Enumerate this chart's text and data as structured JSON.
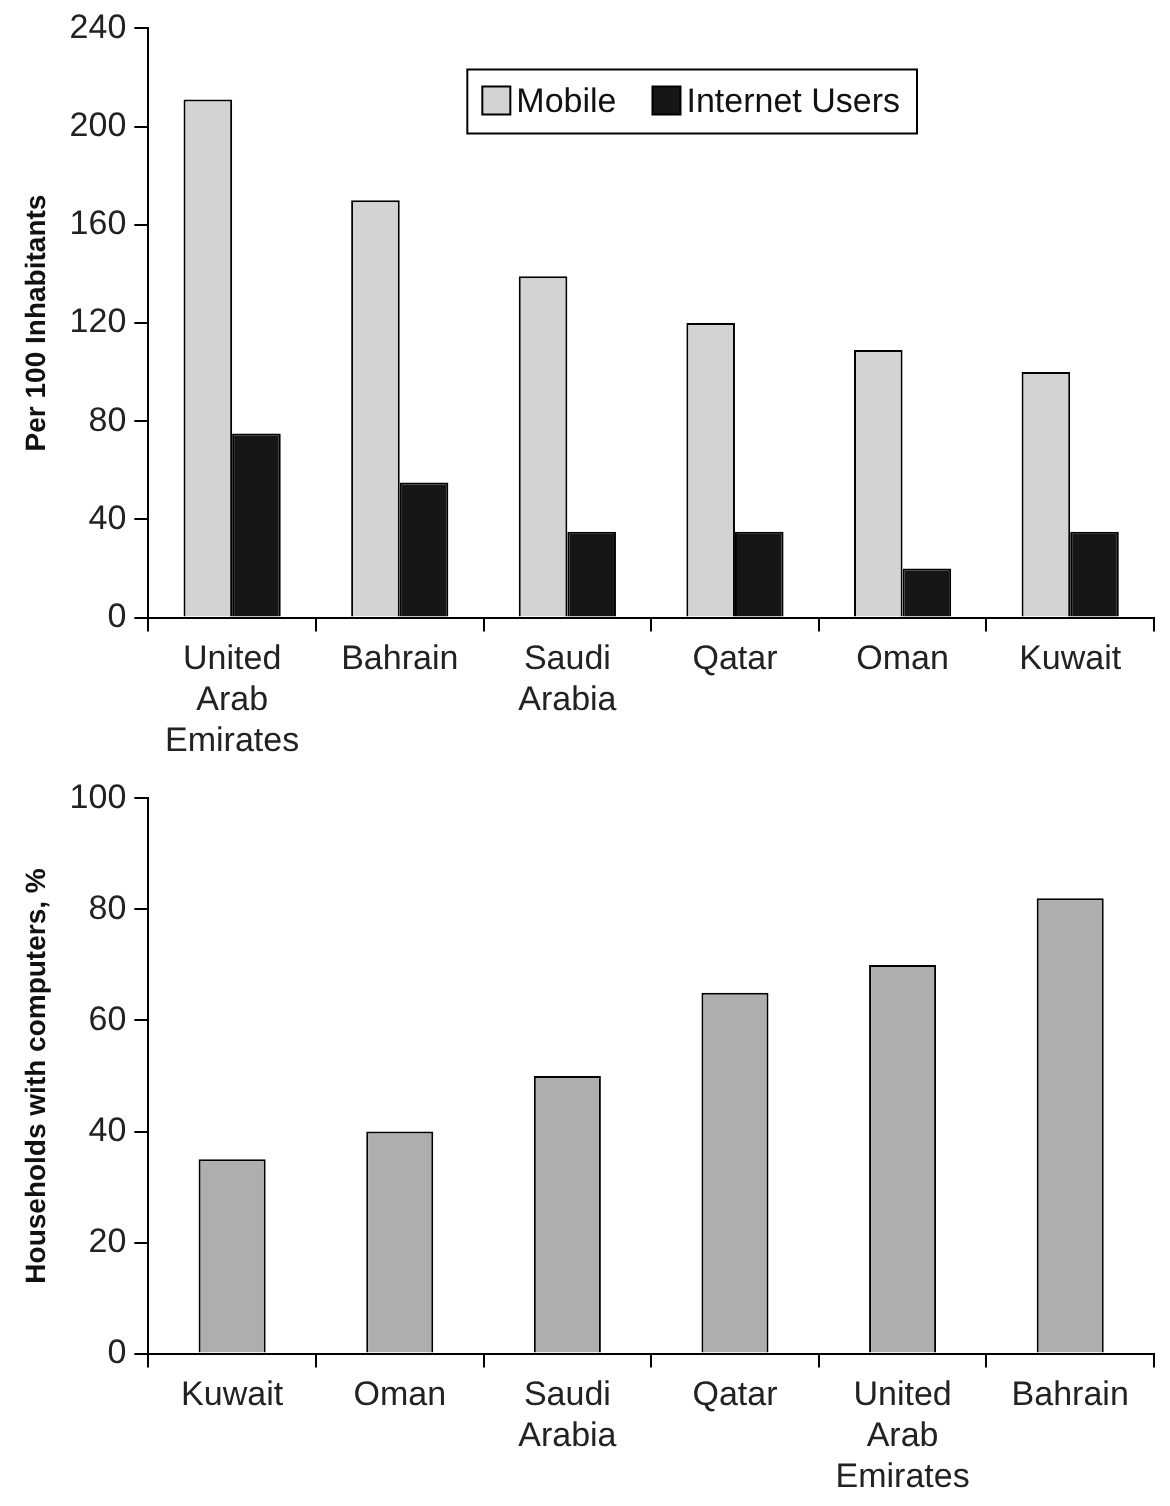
{
  "chart_data": [
    {
      "type": "bar",
      "ylabel": "Per 100 Inhabitants",
      "categories": [
        "United Arab Emirates",
        "Bahrain",
        "Saudi Arabia",
        "Qatar",
        "Oman",
        "Kuwait"
      ],
      "series": [
        {
          "name": "Mobile",
          "color": "#d3d3d3",
          "values": [
            211,
            170,
            139,
            120,
            109,
            100
          ]
        },
        {
          "name": "Internet Users",
          "color": "#161616",
          "values": [
            75,
            55,
            35,
            35,
            20,
            35
          ]
        }
      ],
      "ylim": [
        0,
        240
      ],
      "yticks": [
        0,
        40,
        80,
        120,
        160,
        200,
        240
      ],
      "grid": false,
      "legend": "top"
    },
    {
      "type": "bar",
      "ylabel": "Households with computers, %",
      "categories": [
        "Kuwait",
        "Oman",
        "Saudi Arabia",
        "Qatar",
        "United Arab Emirates",
        "Bahrain"
      ],
      "values": [
        35,
        40,
        50,
        65,
        70,
        82
      ],
      "color": "#aeaeae",
      "ylim": [
        0,
        100
      ],
      "yticks": [
        0,
        20,
        40,
        60,
        80,
        100
      ],
      "grid": false
    }
  ]
}
